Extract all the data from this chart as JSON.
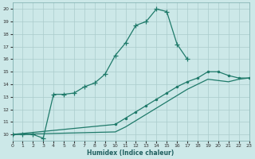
{
  "xlabel": "Humidex (Indice chaleur)",
  "xlim": [
    0,
    23
  ],
  "ylim": [
    9.5,
    20.5
  ],
  "xticks": [
    0,
    1,
    2,
    3,
    4,
    5,
    6,
    7,
    8,
    9,
    10,
    11,
    12,
    13,
    14,
    15,
    16,
    17,
    18,
    19,
    20,
    21,
    22,
    23
  ],
  "yticks": [
    10,
    11,
    12,
    13,
    14,
    15,
    16,
    17,
    18,
    19,
    20
  ],
  "bg_color": "#cce8e8",
  "line_color": "#1f7a6a",
  "grid_color": "#aacccc",
  "line1_x": [
    0,
    1,
    2,
    3,
    4,
    5,
    6,
    7,
    8,
    9,
    10,
    11,
    12,
    13,
    14,
    15,
    16,
    17
  ],
  "line1_y": [
    10,
    10,
    10,
    9.7,
    13.2,
    13.2,
    13.3,
    13.8,
    14.1,
    14.8,
    16.3,
    17.3,
    18.7,
    19.0,
    20.0,
    19.8,
    17.2,
    16.0
  ],
  "line2_x": [
    0,
    10,
    11,
    12,
    13,
    14,
    15,
    16,
    17,
    18,
    19,
    20,
    21,
    22,
    23
  ],
  "line2_y": [
    10,
    10.8,
    11.3,
    11.8,
    12.3,
    12.8,
    13.3,
    13.8,
    14.2,
    14.5,
    15.0,
    15.0,
    14.7,
    14.5,
    14.5
  ],
  "line3_x": [
    0,
    10,
    11,
    12,
    13,
    14,
    15,
    16,
    17,
    18,
    19,
    20,
    21,
    22,
    23
  ],
  "line3_y": [
    10,
    10.2,
    10.6,
    11.1,
    11.6,
    12.1,
    12.6,
    13.1,
    13.6,
    14.0,
    14.4,
    14.3,
    14.2,
    14.4,
    14.5
  ]
}
